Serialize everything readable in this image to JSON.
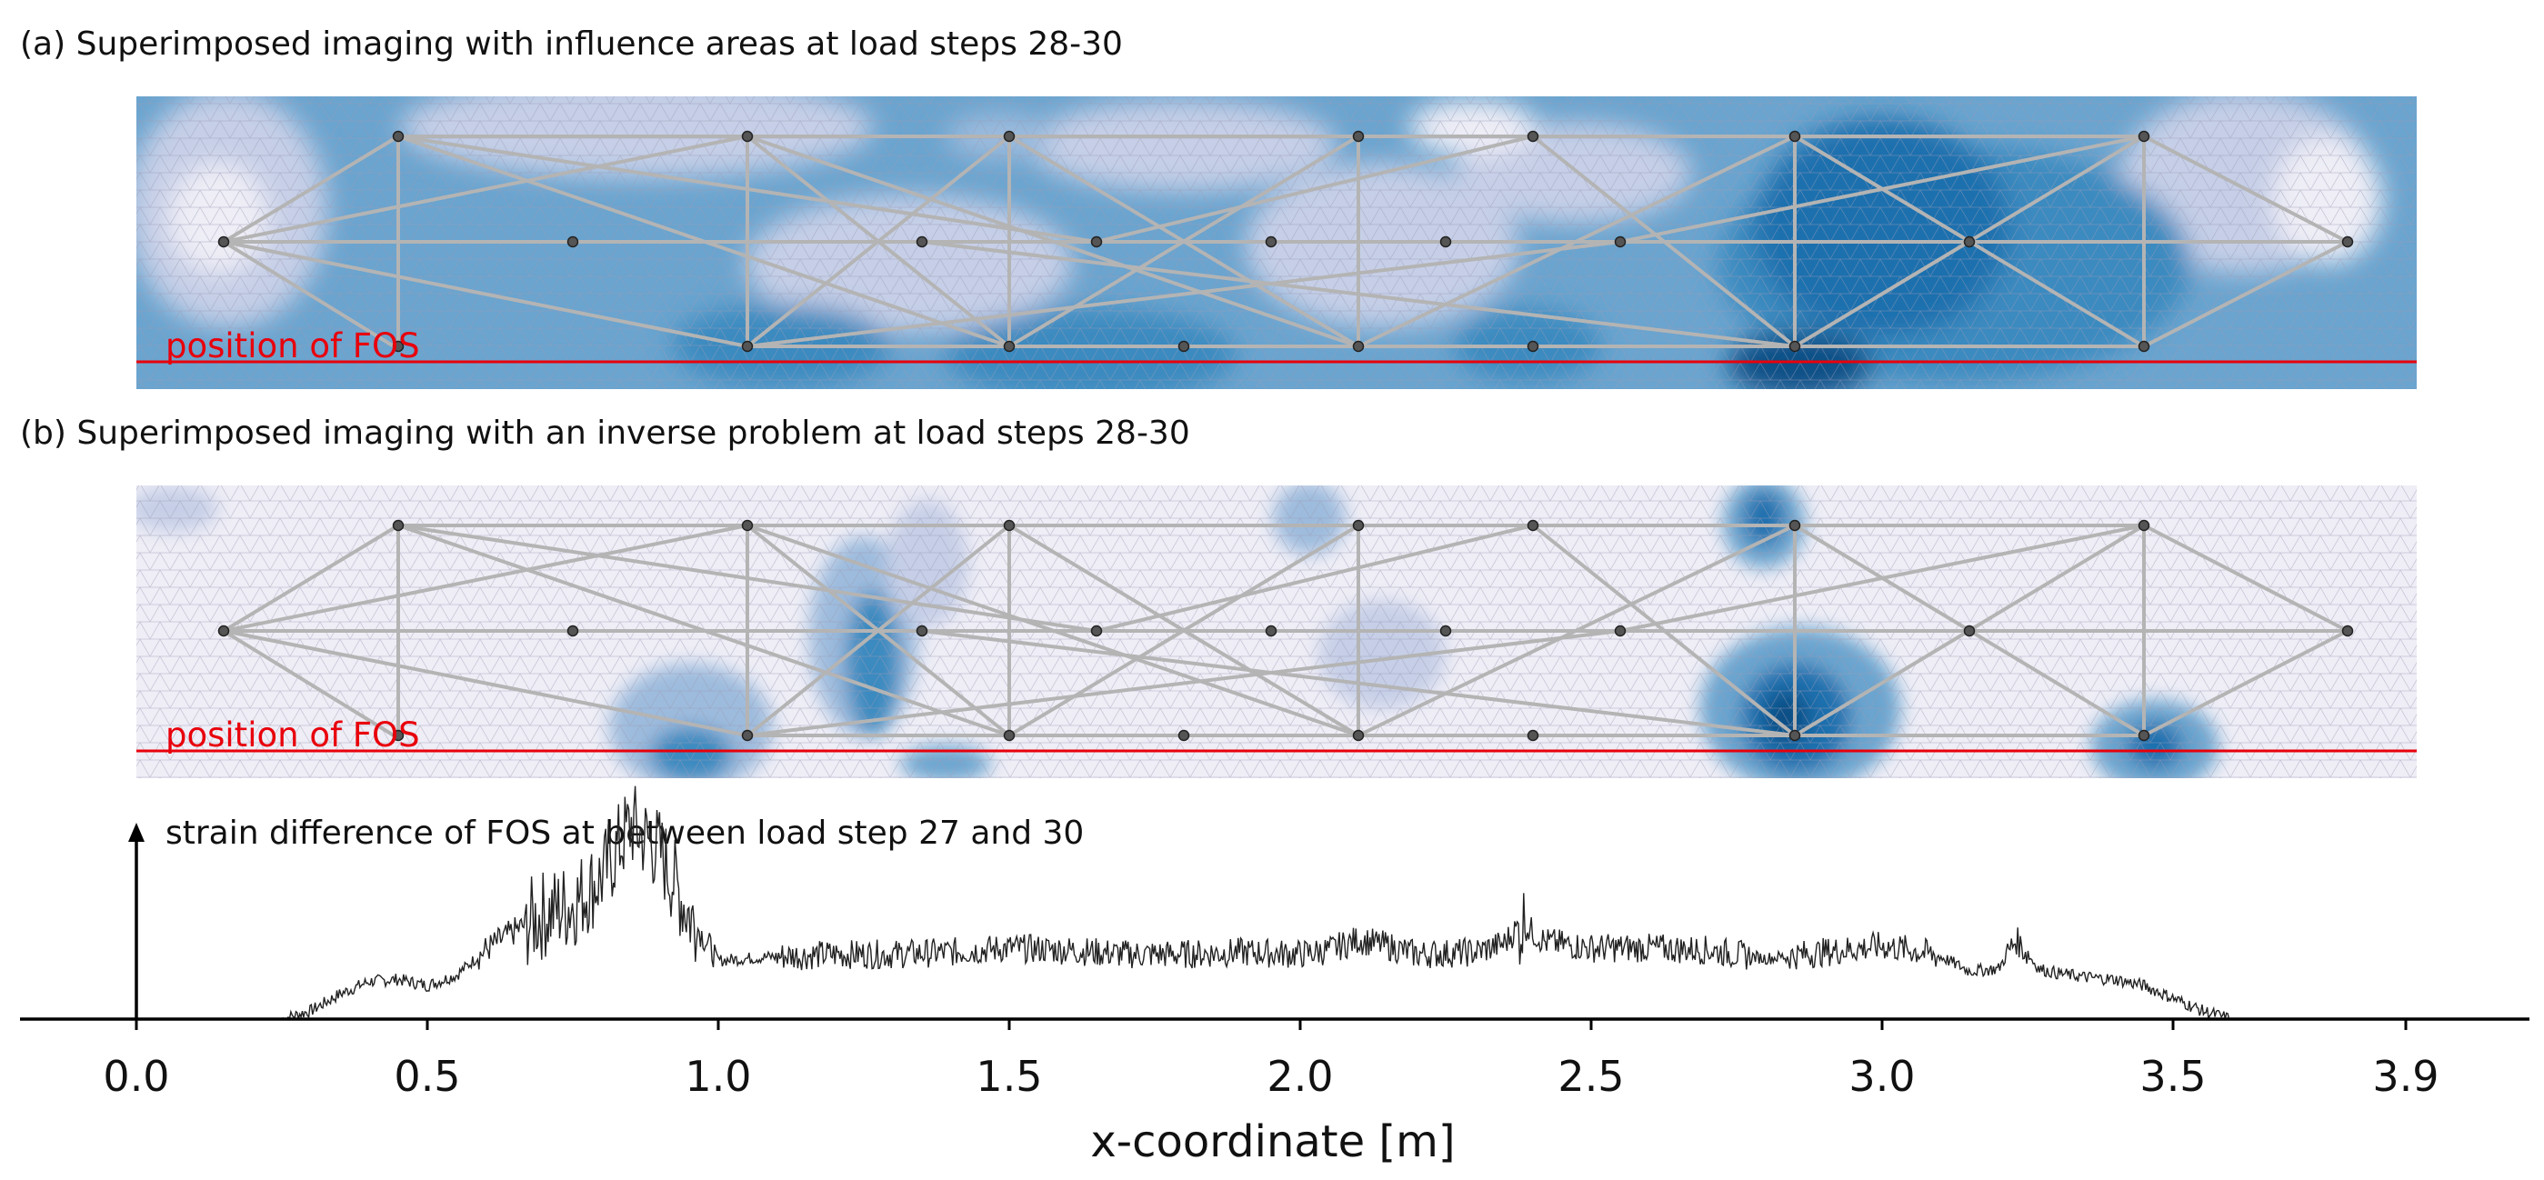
{
  "panel_a": {
    "title": "(a) Superimposed imaging with influence areas at load steps 28-30",
    "fos_label": "position of FOS"
  },
  "panel_b": {
    "title": "(b) Superimposed imaging with an inverse problem at load steps 28-30",
    "fos_label": "position of FOS"
  },
  "colors": {
    "fos_line": "#e8000b",
    "truss": "#b4b4b4",
    "mesh": "#9a9ab4",
    "signal": "#222222",
    "blue_levels": [
      "#efeef6",
      "#c6cfe7",
      "#9dbbdd",
      "#6aa4cf",
      "#3a8ac0",
      "#1c6fae",
      "#0b4f86"
    ]
  },
  "chart_data": {
    "type": "line",
    "title": "strain difference of FOS at between load step 27 and 30",
    "xlabel": "x-coordinate [m]",
    "ylabel": "",
    "xlim": [
      -0.2,
      4.0
    ],
    "ylim": [
      0,
      1
    ],
    "x_ticks": [
      0.0,
      0.5,
      1.0,
      1.5,
      2.0,
      2.5,
      3.0,
      3.5,
      3.9
    ],
    "x_tick_labels": [
      "0.0",
      "0.5",
      "1.0",
      "1.5",
      "2.0",
      "2.5",
      "3.0",
      "3.5",
      "3.9"
    ],
    "series": [
      {
        "name": "strain difference",
        "x": [
          0.25,
          0.3,
          0.35,
          0.4,
          0.45,
          0.5,
          0.55,
          0.6,
          0.65,
          0.7,
          0.75,
          0.8,
          0.85,
          0.9,
          0.95,
          1.0,
          1.1,
          1.2,
          1.3,
          1.4,
          1.5,
          1.6,
          1.7,
          1.8,
          1.9,
          2.0,
          2.05,
          2.1,
          2.15,
          2.2,
          2.3,
          2.35,
          2.38,
          2.42,
          2.5,
          2.6,
          2.7,
          2.8,
          2.9,
          3.0,
          3.05,
          3.1,
          3.15,
          3.2,
          3.23,
          3.27,
          3.3,
          3.35,
          3.4,
          3.45,
          3.5,
          3.55,
          3.6
        ],
        "values": [
          0.0,
          0.04,
          0.12,
          0.18,
          0.19,
          0.16,
          0.21,
          0.33,
          0.42,
          0.5,
          0.55,
          0.68,
          0.93,
          0.8,
          0.5,
          0.28,
          0.3,
          0.31,
          0.31,
          0.32,
          0.34,
          0.33,
          0.31,
          0.31,
          0.32,
          0.31,
          0.33,
          0.38,
          0.35,
          0.31,
          0.32,
          0.36,
          0.46,
          0.37,
          0.34,
          0.34,
          0.33,
          0.29,
          0.32,
          0.35,
          0.33,
          0.3,
          0.23,
          0.24,
          0.38,
          0.24,
          0.22,
          0.2,
          0.19,
          0.16,
          0.1,
          0.04,
          0.0
        ]
      }
    ]
  }
}
